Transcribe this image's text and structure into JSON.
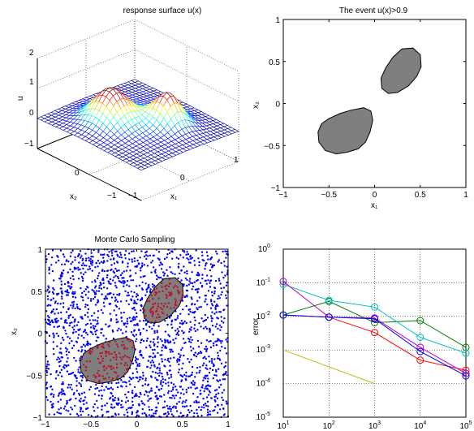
{
  "chart_data": [
    {
      "type": "surface",
      "title": "response surface u(x)",
      "xlabel": "x₁",
      "ylabel": "x₂",
      "zlabel": "u",
      "x_ticks": [
        "1",
        "0",
        "−1"
      ],
      "y_ticks": [
        "−1",
        "0"
      ],
      "z_ticks": [
        "2",
        "1",
        "0",
        "−1"
      ],
      "zlim": [
        -1,
        2
      ],
      "grid": true,
      "peaks": [
        {
          "x1": -0.25,
          "x2": -0.3,
          "u": 1.0
        },
        {
          "x1": 0.3,
          "x2": 0.3,
          "u": 0.95
        }
      ]
    },
    {
      "type": "region",
      "title": "The event u(x)>0.9",
      "xlabel": "x₁",
      "ylabel": "x₂",
      "xlim": [
        -1,
        1
      ],
      "ylim": [
        -1,
        1
      ],
      "x_ticks": [
        "−1",
        "−0.5",
        "0",
        "0.5",
        "1"
      ],
      "y_ticks": [
        "1",
        "0.5",
        "0",
        "−0.5",
        "−1"
      ],
      "fill_color": "#7f7f7f",
      "regions": [
        {
          "name": "blob-large",
          "points": [
            [
              -0.62,
              -0.34
            ],
            [
              -0.58,
              -0.24
            ],
            [
              -0.5,
              -0.18
            ],
            [
              -0.38,
              -0.12
            ],
            [
              -0.26,
              -0.08
            ],
            [
              -0.12,
              -0.05
            ],
            [
              -0.04,
              -0.09
            ],
            [
              -0.02,
              -0.2
            ],
            [
              -0.05,
              -0.34
            ],
            [
              -0.1,
              -0.46
            ],
            [
              -0.18,
              -0.54
            ],
            [
              -0.3,
              -0.58
            ],
            [
              -0.42,
              -0.6
            ],
            [
              -0.54,
              -0.56
            ],
            [
              -0.61,
              -0.46
            ]
          ]
        },
        {
          "name": "blob-small",
          "points": [
            [
              0.08,
              0.18
            ],
            [
              0.07,
              0.3
            ],
            [
              0.12,
              0.42
            ],
            [
              0.2,
              0.55
            ],
            [
              0.3,
              0.65
            ],
            [
              0.42,
              0.66
            ],
            [
              0.5,
              0.58
            ],
            [
              0.51,
              0.44
            ],
            [
              0.46,
              0.32
            ],
            [
              0.37,
              0.21
            ],
            [
              0.25,
              0.13
            ],
            [
              0.15,
              0.12
            ]
          ]
        }
      ]
    },
    {
      "type": "scatter",
      "title": "Monte Carlo Sampling",
      "ylabel": "x₂",
      "xlim": [
        -1,
        1
      ],
      "ylim": [
        -1,
        1
      ],
      "x_ticks": [
        "−1",
        "−0.5",
        "0",
        "0.5",
        "1"
      ],
      "y_ticks": [
        "1",
        "0.5",
        "0",
        "−0.5",
        "−1"
      ],
      "n_samples": 2000,
      "colors": {
        "outside": "#0000ff",
        "inside": "#c0102a",
        "region": "#7f7f7f"
      }
    },
    {
      "type": "line",
      "ylabel": "error",
      "xscale": "log",
      "yscale": "log",
      "xlim": [
        10,
        100000
      ],
      "ylim": [
        1e-05,
        1
      ],
      "x_ticks": [
        10,
        100,
        1000,
        10000,
        100000
      ],
      "y_ticks": [
        1,
        0.1,
        0.01,
        0.001,
        0.0001,
        1e-05
      ],
      "grid": true,
      "series": [
        {
          "color": "#ff0000",
          "marker": "o",
          "x": [
            10,
            100,
            1000,
            10000,
            100000
          ],
          "y": [
            0.011,
            0.0095,
            0.0033,
            0.0005,
            0.00025
          ]
        },
        {
          "color": "#008000",
          "marker": "o",
          "x": [
            10,
            100,
            1000,
            10000,
            100000
          ],
          "y": [
            0.011,
            0.028,
            0.0065,
            0.0075,
            0.0012
          ]
        },
        {
          "color": "#00bfbf",
          "marker": "o",
          "x": [
            10,
            100,
            1000,
            10000,
            100000
          ],
          "y": [
            0.09,
            0.03,
            0.019,
            0.0024,
            0.0008
          ]
        },
        {
          "color": "#bf00bf",
          "marker": "o",
          "x": [
            10,
            100,
            1000,
            10000,
            100000
          ],
          "y": [
            0.11,
            0.0095,
            0.009,
            0.0012,
            0.0002
          ]
        },
        {
          "color": "#0000ff",
          "marker": "o",
          "x": [
            10,
            100,
            1000,
            10000,
            100000
          ],
          "y": [
            0.011,
            0.0095,
            0.0085,
            0.0009,
            0.00017
          ]
        },
        {
          "color": "#bfbf00",
          "marker": "none",
          "x": [
            10,
            1000
          ],
          "y": [
            0.001,
            0.0001
          ]
        }
      ]
    }
  ]
}
